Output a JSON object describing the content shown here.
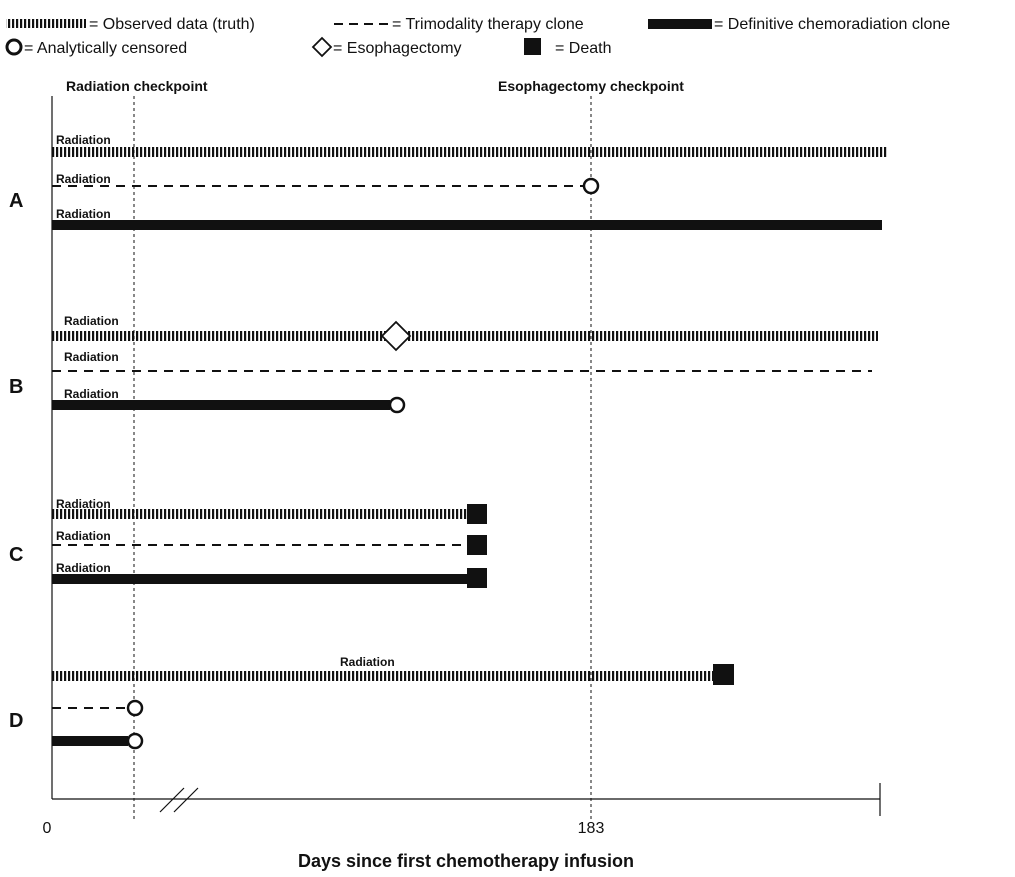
{
  "legend": {
    "observed": "= Observed data (truth)",
    "trimodality": "= Trimodality therapy clone",
    "chemoradiation": "= Definitive chemoradiation clone",
    "censored": "= Analytically censored",
    "esophagectomy": "= Esophagectomy",
    "death": "= Death"
  },
  "checkpoints": {
    "radiation": "Radiation checkpoint",
    "esophagectomy": "Esophagectomy checkpoint"
  },
  "axis": {
    "title": "Days since first chemotherapy infusion",
    "tick_zero": "0",
    "tick_183": "183"
  },
  "patients": {
    "A": {
      "label": "A",
      "observed_label": "Radiation",
      "trimodality_label": "Radiation",
      "chemoradiation_label": "Radiation",
      "observed_end": "continues",
      "trimodality_end": "censored at esophagectomy checkpoint",
      "chemoradiation_end": "continues"
    },
    "B": {
      "label": "B",
      "observed_label": "Radiation",
      "trimodality_label": "Radiation",
      "chemoradiation_label": "Radiation",
      "observed_event": "esophagectomy",
      "trimodality_end": "continues",
      "chemoradiation_end": "censored at esophagectomy"
    },
    "C": {
      "label": "C",
      "observed_label": "Radiation",
      "trimodality_label": "Radiation",
      "chemoradiation_label": "Radiation",
      "observed_end": "death",
      "trimodality_end": "death",
      "chemoradiation_end": "death"
    },
    "D": {
      "label": "D",
      "observed_label": "Radiation",
      "observed_end": "death",
      "trimodality_end": "censored at radiation checkpoint",
      "chemoradiation_end": "censored at radiation checkpoint"
    }
  },
  "colors": {
    "ink": "#111111",
    "background": "#ffffff"
  }
}
